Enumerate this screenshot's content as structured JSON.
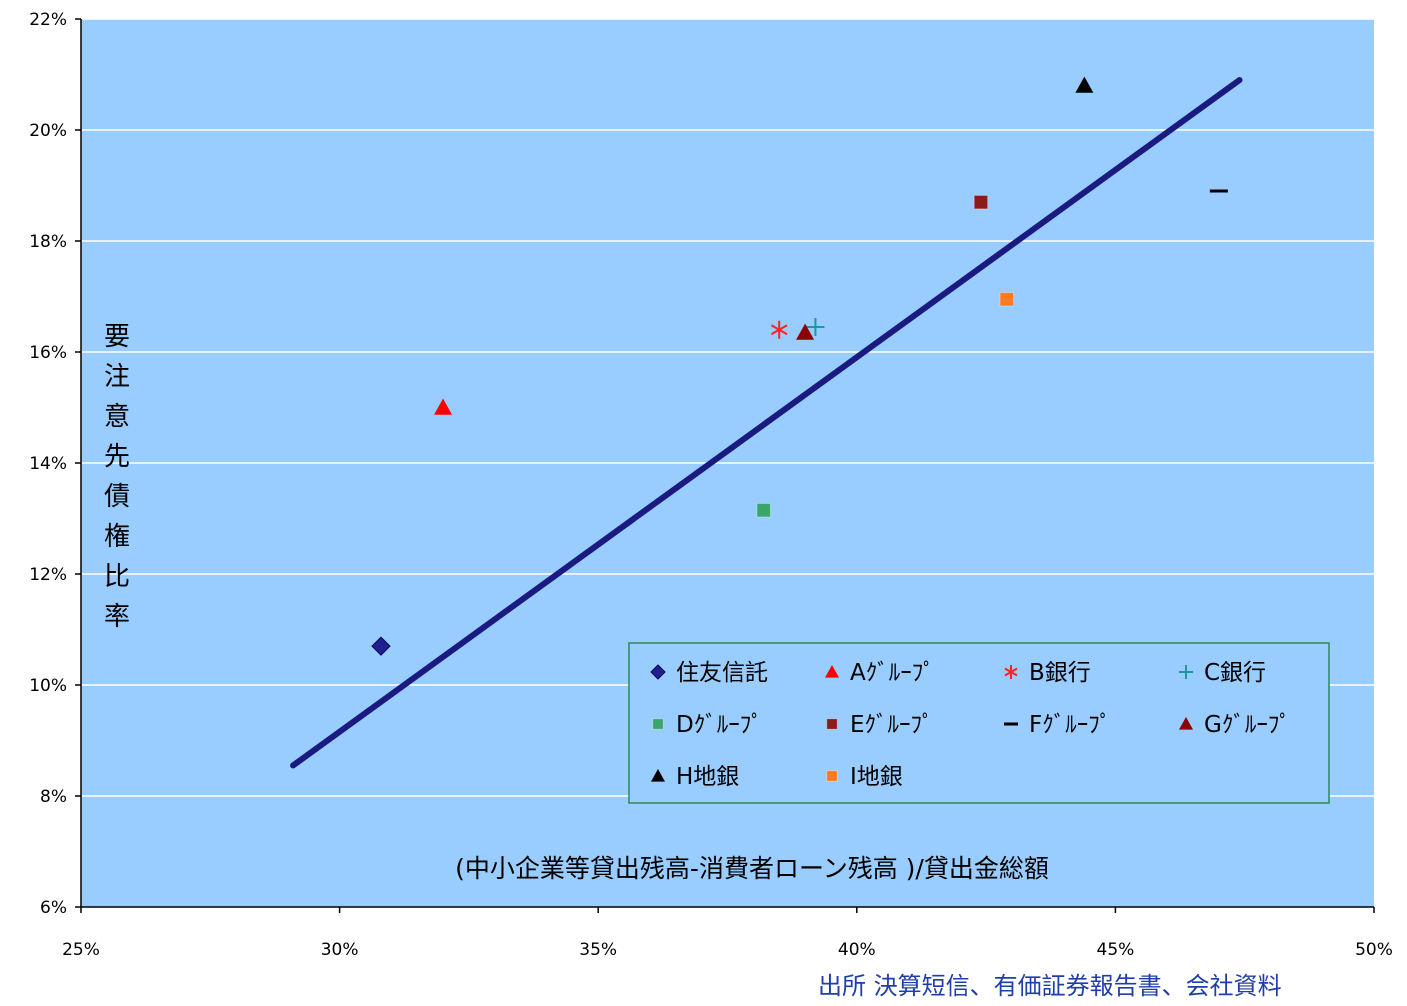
{
  "chart_data": {
    "type": "scatter",
    "title": "",
    "xlabel": "(中小企業等貸出残高-消費者ローン残高 )/貸出金総額",
    "ylabel": "要注意先債権比率",
    "xlim": [
      25,
      50
    ],
    "ylim": [
      6,
      22
    ],
    "x_ticks": [
      "25%",
      "30%",
      "35%",
      "40%",
      "45%",
      "50%"
    ],
    "y_ticks": [
      "6%",
      "8%",
      "10%",
      "12%",
      "14%",
      "16%",
      "18%",
      "20%",
      "22%"
    ],
    "grid": true,
    "legend_position": "bottom-right-inside",
    "series": [
      {
        "name": "住友信託",
        "marker": "diamond",
        "color": "#1f1f8f",
        "x": 30.8,
        "y": 10.7
      },
      {
        "name": "Aｸﾞﾙｰﾌﾟ",
        "marker": "triangle",
        "color": "#ff0000",
        "x": 32.0,
        "y": 15.0
      },
      {
        "name": "B銀行",
        "marker": "asterisk",
        "color": "#ff2020",
        "x": 38.5,
        "y": 16.4
      },
      {
        "name": "C銀行",
        "marker": "plus",
        "color": "#1a9a9a",
        "x": 39.2,
        "y": 16.45
      },
      {
        "name": "Dｸﾞﾙｰﾌﾟ",
        "marker": "square",
        "color": "#3aa56a",
        "x": 38.2,
        "y": 13.15
      },
      {
        "name": "Eｸﾞﾙｰﾌﾟ",
        "marker": "square",
        "color": "#8b1a1a",
        "x": 42.4,
        "y": 18.7
      },
      {
        "name": "Fｸﾞﾙｰﾌﾟ",
        "marker": "dash",
        "color": "#000000",
        "x": 47.0,
        "y": 18.9
      },
      {
        "name": "Gｸﾞﾙｰﾌﾟ",
        "marker": "triangle",
        "color": "#8b0000",
        "x": 39.0,
        "y": 16.35
      },
      {
        "name": "H地銀",
        "marker": "triangle",
        "color": "#000000",
        "x": 44.4,
        "y": 20.8
      },
      {
        "name": "I地銀",
        "marker": "square",
        "color": "#ff7a20",
        "x": 42.9,
        "y": 16.95
      }
    ],
    "trendline": {
      "color": "#1a1a80",
      "x": [
        29.1,
        47.4
      ],
      "y": [
        8.55,
        20.9
      ]
    },
    "source_note": "出所 決算短信、有価証券報告書、会社資料"
  },
  "colors": {
    "plot_bg": "#99ccff",
    "grid": "#ffffff",
    "legend_border": "#2a8a5a"
  }
}
